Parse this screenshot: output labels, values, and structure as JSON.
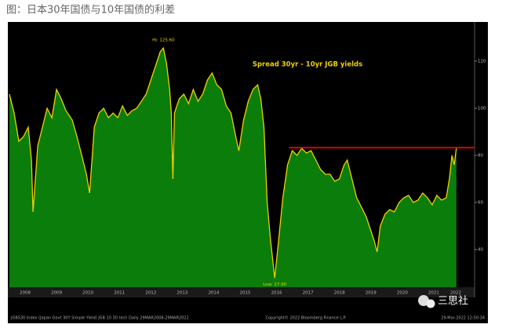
{
  "caption": "图：日本30年国债与10年国债的利差",
  "chart_data": {
    "type": "area-line",
    "title": "Spread 30yr - 10yr JGB yields",
    "annotations": {
      "high": "Hi: 125.60",
      "low": "Low: 27.90"
    },
    "series": [
      {
        "name": "Spread 30yr - 10yr JGB yields",
        "color": "#f0d000",
        "fill": "#0b7d0b",
        "x": [
          2008.0,
          2008.15,
          2008.3,
          2008.45,
          2008.6,
          2008.7,
          2008.75,
          2008.9,
          2009.05,
          2009.2,
          2009.35,
          2009.5,
          2009.65,
          2009.8,
          2010.0,
          2010.15,
          2010.3,
          2010.45,
          2010.55,
          2010.7,
          2010.85,
          2011.0,
          2011.15,
          2011.3,
          2011.45,
          2011.6,
          2011.75,
          2011.9,
          2012.05,
          2012.2,
          2012.35,
          2012.5,
          2012.65,
          2012.8,
          2012.9,
          2013.0,
          2013.1,
          2013.15,
          2013.2,
          2013.25,
          2013.4,
          2013.55,
          2013.7,
          2013.85,
          2014.0,
          2014.15,
          2014.3,
          2014.45,
          2014.6,
          2014.75,
          2014.9,
          2015.05,
          2015.2,
          2015.3,
          2015.45,
          2015.6,
          2015.75,
          2015.9,
          2016.0,
          2016.1,
          2016.2,
          2016.3,
          2016.44,
          2016.55,
          2016.7,
          2016.85,
          2017.0,
          2017.15,
          2017.3,
          2017.45,
          2017.6,
          2017.75,
          2017.9,
          2018.05,
          2018.2,
          2018.35,
          2018.5,
          2018.65,
          2018.75,
          2018.9,
          2019.05,
          2019.2,
          2019.35,
          2019.5,
          2019.6,
          2019.7,
          2019.8,
          2019.95,
          2020.1,
          2020.25,
          2020.4,
          2020.55,
          2020.7,
          2020.85,
          2021.0,
          2021.15,
          2021.3,
          2021.45,
          2021.6,
          2021.75,
          2021.9,
          2022.0,
          2022.08,
          2022.15,
          2022.22
        ],
        "values": [
          106,
          98,
          86,
          88,
          92,
          78,
          56,
          84,
          92,
          100,
          96,
          108,
          104,
          99,
          95,
          88,
          80,
          72,
          64,
          92,
          98,
          100,
          96,
          98,
          96,
          101,
          97,
          99,
          100,
          103,
          106,
          112,
          118,
          124,
          125.6,
          119,
          108,
          98,
          70,
          98,
          104,
          106,
          102,
          108,
          103,
          106,
          112,
          115,
          110,
          108,
          101,
          98,
          88,
          82,
          95,
          103,
          108,
          110,
          104,
          92,
          60,
          45,
          27.9,
          42,
          62,
          76,
          82,
          80,
          83,
          81,
          82,
          78,
          74,
          72,
          72,
          69,
          70,
          76,
          78,
          70,
          62,
          58,
          54,
          48,
          44,
          39,
          50,
          55,
          57,
          56,
          60,
          62,
          63,
          60,
          61,
          64,
          62,
          59,
          63,
          61,
          62,
          70,
          80,
          76,
          83
        ]
      }
    ],
    "reference_line": {
      "value": 83.3,
      "from": 2016.9,
      "color": "#e00000"
    },
    "xlim": [
      2007.95,
      2022.8
    ],
    "ylim": [
      24,
      136
    ],
    "xticks": [
      {
        "value": 2008.5,
        "label": "2008"
      },
      {
        "value": 2009.5,
        "label": "2009"
      },
      {
        "value": 2010.5,
        "label": "2010"
      },
      {
        "value": 2011.5,
        "label": "2011"
      },
      {
        "value": 2012.5,
        "label": "2012"
      },
      {
        "value": 2013.5,
        "label": "2013"
      },
      {
        "value": 2014.5,
        "label": "2014"
      },
      {
        "value": 2015.5,
        "label": "2015"
      },
      {
        "value": 2016.5,
        "label": "2016"
      },
      {
        "value": 2017.5,
        "label": "2017"
      },
      {
        "value": 2018.5,
        "label": "2018"
      },
      {
        "value": 2019.5,
        "label": "2019"
      },
      {
        "value": 2020.5,
        "label": "2020"
      },
      {
        "value": 2021.5,
        "label": "2021"
      },
      {
        "value": 2022.2,
        "label": "2022"
      }
    ],
    "yticks": [
      40,
      60,
      80,
      100,
      120
    ],
    "footer": {
      "left": "JGBS30 Index (Japan Govt 30Y Simple Yield) JGB 10 30 tech  Daily 29MAR2008-29MAR2022",
      "center": "Copyright© 2022 Bloomberg Finance L.P.",
      "right": "29-Mar-2022 12:50:34"
    }
  },
  "watermark": "三思社"
}
